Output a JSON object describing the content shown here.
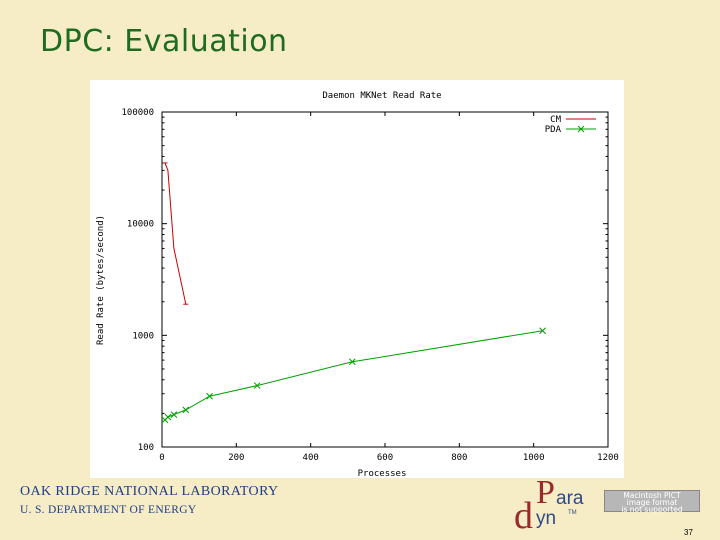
{
  "slide": {
    "title": "DPC: Evaluation",
    "org_line1": "OAK RIDGE NATIONAL LABORATORY",
    "org_line2": "U. S. DEPARTMENT OF ENERGY",
    "page_number": "37",
    "logo": {
      "p": "P",
      "ara": "ara",
      "d": "d",
      "yn": "yn",
      "tm": "TM"
    },
    "pict_notice": [
      "Macintosh PICT",
      "image format",
      "is not supported"
    ]
  },
  "chart_data": {
    "type": "line",
    "title": "Daemon MKNet Read Rate",
    "xlabel": "Processes",
    "ylabel": "Read Rate (bytes/second)",
    "xlim": [
      0,
      1200
    ],
    "ylim": [
      100,
      100000
    ],
    "y_scale": "log",
    "x_ticks": [
      0,
      200,
      400,
      600,
      800,
      1000,
      1200
    ],
    "x_tick_labels": [
      "0",
      "200",
      "400",
      "600",
      "800",
      "1000",
      "1200"
    ],
    "y_ticks": [
      100,
      1000,
      10000,
      100000
    ],
    "y_tick_labels": [
      "100",
      "1000",
      "10000",
      "100000"
    ],
    "legend_position": "top-right",
    "grid": false,
    "series": [
      {
        "name": "CM",
        "color": "#cc0000",
        "marker": "none",
        "points": [
          [
            8,
            35000
          ],
          [
            16,
            30000
          ],
          [
            32,
            6000
          ],
          [
            64,
            1900
          ]
        ]
      },
      {
        "name": "PDA",
        "color": "#00a000",
        "marker": "x",
        "points": [
          [
            8,
            175
          ],
          [
            16,
            185
          ],
          [
            32,
            195
          ],
          [
            64,
            215
          ],
          [
            128,
            285
          ],
          [
            256,
            355
          ],
          [
            512,
            580
          ],
          [
            1024,
            1100
          ]
        ]
      }
    ]
  }
}
